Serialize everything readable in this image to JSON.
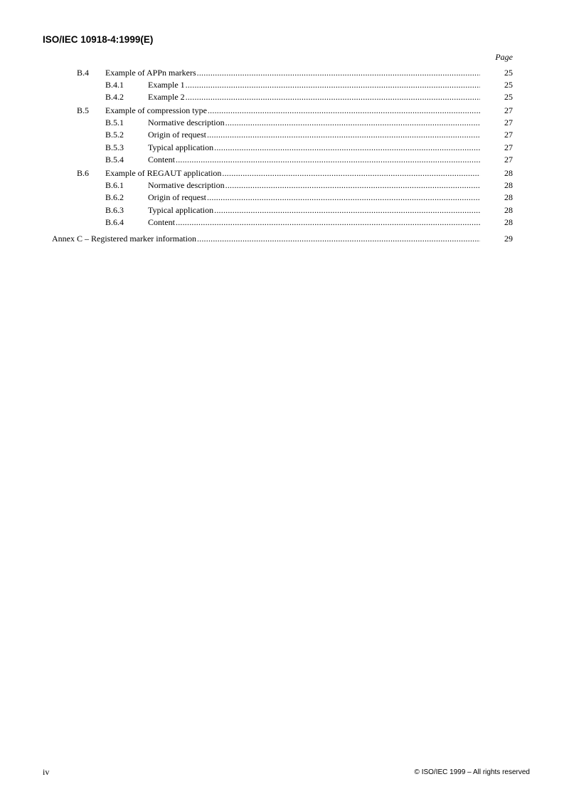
{
  "header": {
    "title": "ISO/IEC 10918-4:1999(E)",
    "page_label": "Page"
  },
  "toc": [
    {
      "level": 1,
      "number": "B.4",
      "title": "Example of APPn markers",
      "page": "25"
    },
    {
      "level": 2,
      "number": "B.4.1",
      "title": "Example 1",
      "page": "25"
    },
    {
      "level": 2,
      "number": "B.4.2",
      "title": "Example 2",
      "page": "25"
    },
    {
      "level": 1,
      "number": "B.5",
      "title": "Example of compression type",
      "page": "27"
    },
    {
      "level": 2,
      "number": "B.5.1",
      "title": "Normative description",
      "page": "27"
    },
    {
      "level": 2,
      "number": "B.5.2",
      "title": "Origin of request",
      "page": "27"
    },
    {
      "level": 2,
      "number": "B.5.3",
      "title": "Typical application",
      "page": "27"
    },
    {
      "level": 2,
      "number": "B.5.4",
      "title": "Content",
      "page": "27"
    },
    {
      "level": 1,
      "number": "B.6",
      "title": "Example of REGAUT application",
      "page": "28"
    },
    {
      "level": 2,
      "number": "B.6.1",
      "title": "Normative description",
      "page": "28"
    },
    {
      "level": 2,
      "number": "B.6.2",
      "title": "Origin of request",
      "page": "28"
    },
    {
      "level": 2,
      "number": "B.6.3",
      "title": "Typical application",
      "page": "28"
    },
    {
      "level": 2,
      "number": "B.6.4",
      "title": "Content",
      "page": "28"
    },
    {
      "level": 0,
      "number": "",
      "title": "Annex C – Registered marker information",
      "page": "29"
    }
  ],
  "footer": {
    "page_number": "iv",
    "copyright": "© ISO/IEC 1999 – All rights reserved"
  }
}
